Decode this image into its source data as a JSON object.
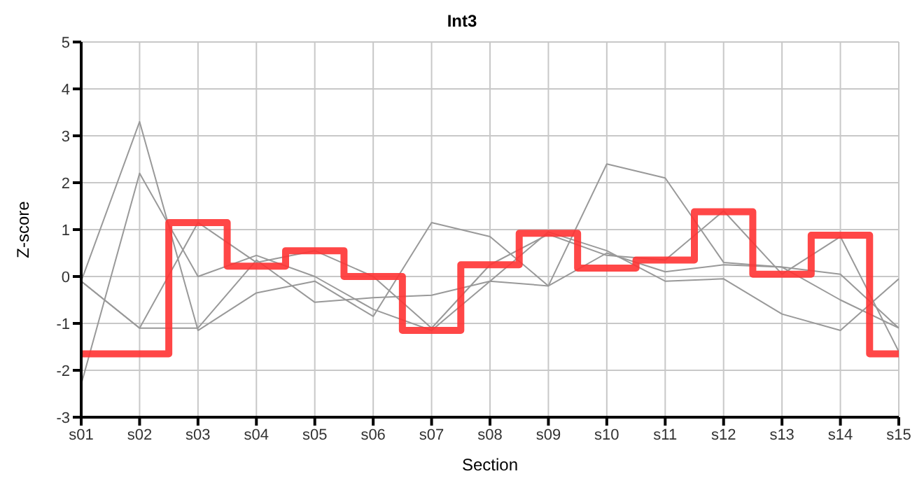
{
  "chart_data": {
    "type": "line",
    "title": "Int3",
    "xlabel": "Section",
    "ylabel": "Z-score",
    "categories": [
      "s01",
      "s02",
      "s03",
      "s04",
      "s05",
      "s06",
      "s07",
      "s08",
      "s09",
      "s10",
      "s11",
      "s12",
      "s13",
      "s14",
      "s15"
    ],
    "ylim": [
      -3,
      5
    ],
    "yticks": [
      -3,
      -2,
      -1,
      0,
      1,
      2,
      3,
      4,
      5
    ],
    "grid": true,
    "legend": false,
    "marker": "none",
    "series": [
      {
        "color": "#999999",
        "values": [
          -0.1,
          3.3,
          -1.15,
          -0.35,
          -0.1,
          -0.85,
          1.15,
          0.85,
          -0.2,
          2.4,
          2.1,
          0.3,
          0.2,
          0.05,
          -1.1
        ]
      },
      {
        "color": "#999999",
        "values": [
          -2.3,
          2.2,
          0.0,
          0.45,
          0.0,
          -0.7,
          -1.15,
          -0.1,
          -0.2,
          0.5,
          0.1,
          0.25,
          0.2,
          -0.5,
          -1.1
        ]
      },
      {
        "color": "#999999",
        "values": [
          -0.1,
          -1.1,
          -1.1,
          0.35,
          -0.55,
          -0.45,
          -0.4,
          -0.1,
          0.95,
          0.55,
          -0.1,
          -0.05,
          -0.8,
          -1.15,
          -0.05
        ]
      },
      {
        "color": "#999999",
        "values": [
          -0.1,
          -1.1,
          1.15,
          0.3,
          0.55,
          0.0,
          -1.1,
          0.25,
          0.9,
          0.45,
          0.35,
          1.4,
          0.05,
          0.85,
          -1.6
        ]
      },
      {
        "type": "step",
        "color": "#ff3333",
        "values": [
          -1.65,
          -1.65,
          1.15,
          0.22,
          0.55,
          0.0,
          -1.15,
          0.25,
          0.92,
          0.18,
          0.35,
          1.38,
          0.05,
          0.88,
          -1.65
        ]
      }
    ]
  }
}
